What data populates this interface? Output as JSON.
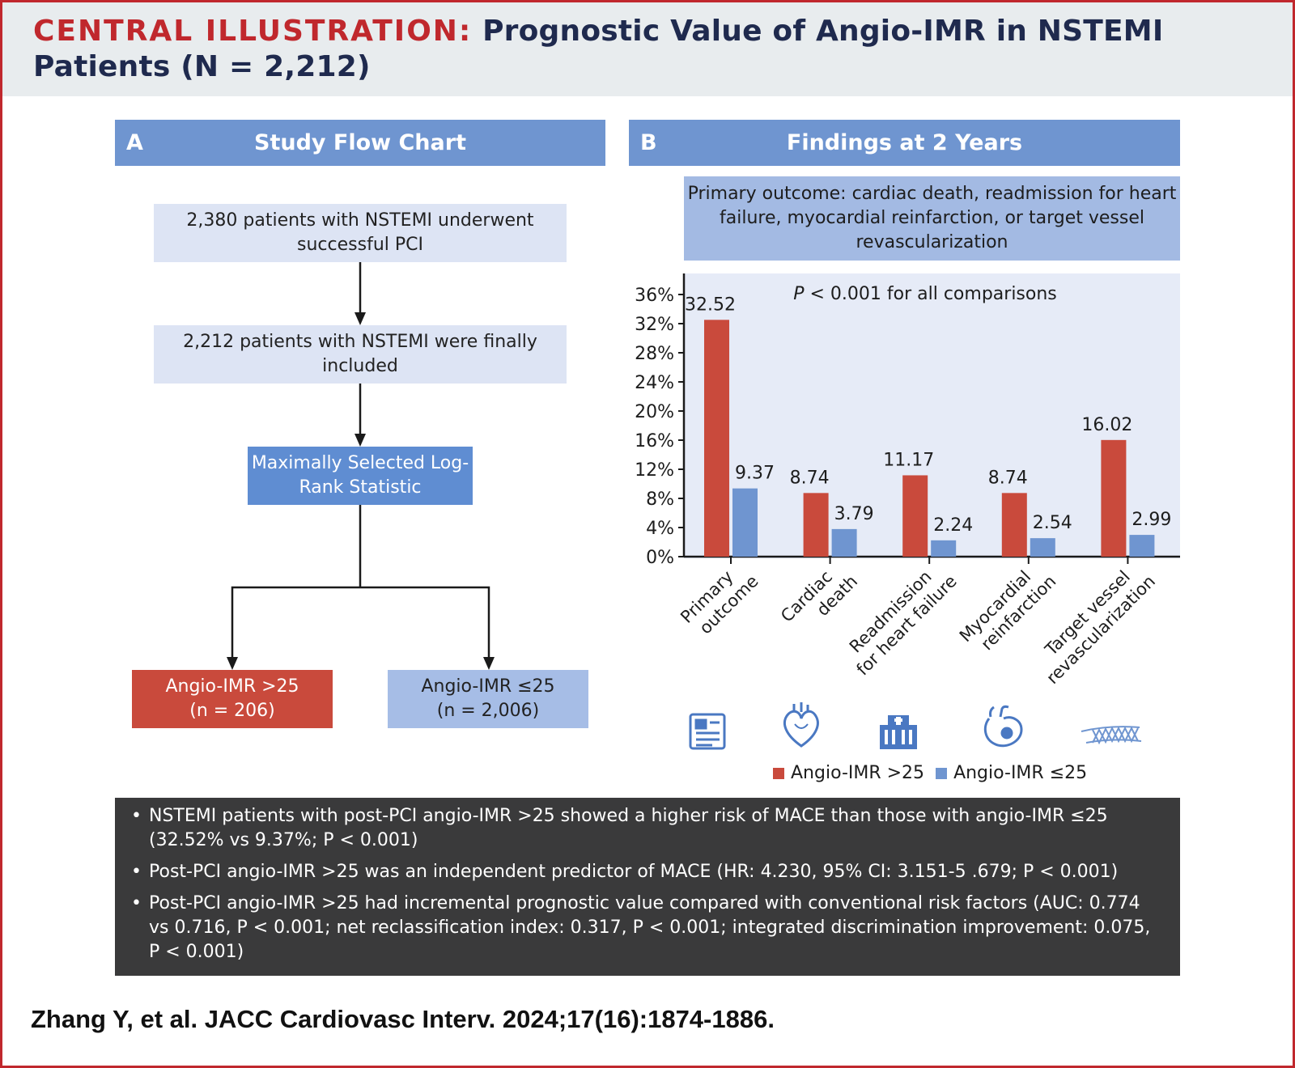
{
  "header": {
    "label": "CENTRAL ILLUSTRATION:",
    "title": "Prognostic Value of Angio-IMR in NSTEMI Patients (N = 2,212)"
  },
  "panel_a": {
    "letter": "A",
    "title": "Study Flow Chart",
    "box1": "2,380 patients with NSTEMI underwent successful PCI",
    "box2": "2,212 patients with NSTEMI were finally included",
    "box3": "Maximally Selected Log-Rank Statistic",
    "box_high": {
      "line1": "Angio-IMR >25",
      "line2": "(n = 206)"
    },
    "box_low": {
      "line1": "Angio-IMR ≤25",
      "line2": "(n = 2,006)"
    }
  },
  "panel_b": {
    "letter": "B",
    "title": "Findings at 2 Years",
    "outcome_def": "Primary outcome: cardiac death, readmission for heart failure, myocardial reinfarction, or target vessel revascularization",
    "p_note_italic": "P",
    "p_note_rest": " < 0.001 for all comparisons",
    "icons": [
      "clipboard-report-icon",
      "heart-icon",
      "hospital-icon",
      "heart-vessel-icon",
      "stent-icon"
    ]
  },
  "chart_data": {
    "type": "bar",
    "title": "",
    "xlabel": "",
    "ylabel": "",
    "ylim": [
      0,
      38
    ],
    "yticks": [
      "0%",
      "4%",
      "8%",
      "12%",
      "16%",
      "20%",
      "24%",
      "28%",
      "32%",
      "36%"
    ],
    "categories": [
      [
        "Primary",
        "outcome"
      ],
      [
        "Cardiac",
        "death"
      ],
      [
        "Readmission",
        "for heart failure"
      ],
      [
        "Myocardial",
        "reinfarction"
      ],
      [
        "Target vessel",
        "revascularization"
      ]
    ],
    "series": [
      {
        "name": "Angio-IMR >25",
        "color": "#c94a3c",
        "values": [
          32.52,
          8.74,
          11.17,
          8.74,
          16.02
        ],
        "labels": [
          "32.52",
          "8.74",
          "11.17",
          "8.74",
          "16.02"
        ]
      },
      {
        "name": "Angio-IMR ≤25",
        "color": "#6f95d0",
        "values": [
          9.37,
          3.79,
          2.24,
          2.54,
          2.99
        ],
        "labels": [
          "9.37",
          "3.79",
          "2.24",
          "2.54",
          "2.99"
        ]
      }
    ],
    "legend": "bottom"
  },
  "legend": {
    "high": "Angio-IMR >25",
    "low": "Angio-IMR ≤25"
  },
  "bullets": [
    "NSTEMI patients with post-PCI angio-IMR >25 showed a higher risk of MACE than those with angio-IMR ≤25 (32.52% vs 9.37%; P < 0.001)",
    "Post-PCI angio-IMR >25 was an independent predictor of MACE (HR: 4.230, 95% CI: 3.151-5 .679; P < 0.001)",
    "Post-PCI angio-IMR >25 had incremental prognostic value compared with conventional risk factors (AUC: 0.774 vs 0.716, P < 0.001; net reclassification index: 0.317, P < 0.001; integrated discrimination improvement: 0.075, P < 0.001)"
  ],
  "citation": "Zhang Y, et al. JACC Cardiovasc Interv. 2024;17(16):1874-1886.",
  "colors": {
    "brand_red": "#c0282d",
    "navy": "#1f2a4e",
    "panel_blue": "#6f95d0",
    "bar_red": "#c94a3c",
    "bar_blue": "#6f95d0",
    "plot_bg": "#e6ebf7",
    "bullet_bg": "#3a3a3b"
  }
}
